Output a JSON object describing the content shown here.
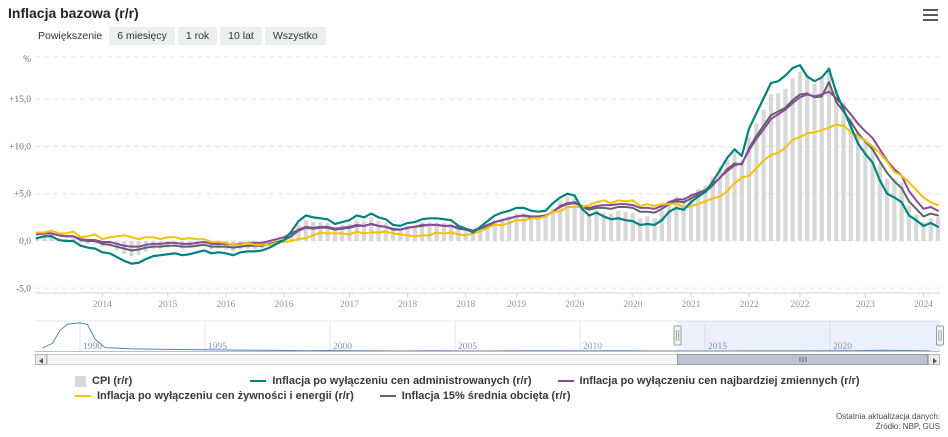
{
  "title": "Inflacja bazowa (r/r)",
  "range_selector": {
    "label": "Powiększenie",
    "buttons": [
      {
        "label": "6 miesięcy"
      },
      {
        "label": "1 rok"
      },
      {
        "label": "10 lat"
      },
      {
        "label": "Wszystko"
      }
    ]
  },
  "chart_data": {
    "type": "bar",
    "subtype": "combo: monthly CPI bars + 4 core-inflation lines (Highstock style)",
    "x_start": "2014-01",
    "x_end": "2024-05",
    "x_interval": "monthly",
    "y_axis": {
      "title": "%",
      "ticks": [
        {
          "v": -5,
          "label": "-5,0"
        },
        {
          "v": 0,
          "label": "0,0"
        },
        {
          "v": 5,
          "label": "+5,0"
        },
        {
          "v": 10,
          "label": "+10,0"
        },
        {
          "v": 15,
          "label": "+15,0"
        }
      ],
      "range": [
        -5.8,
        19.6
      ],
      "grid": "dashed"
    },
    "x_ticks": [
      {
        "label": "2014",
        "i": 9
      },
      {
        "label": "2015",
        "i": 18
      },
      {
        "label": "2016",
        "i": 26
      },
      {
        "label": "2016",
        "i": 34
      },
      {
        "label": "2017",
        "i": 43
      },
      {
        "label": "2018",
        "i": 51
      },
      {
        "label": "2018",
        "i": 59
      },
      {
        "label": "2019",
        "i": 66
      },
      {
        "label": "2020",
        "i": 74
      },
      {
        "label": "2020",
        "i": 82
      },
      {
        "label": "2021",
        "i": 90
      },
      {
        "label": "2022",
        "i": 98
      },
      {
        "label": "2022",
        "i": 105
      },
      {
        "label": "2023",
        "i": 114
      },
      {
        "label": "2024",
        "i": 122
      }
    ],
    "series": [
      {
        "name": "CPI (r/r)",
        "type": "bar",
        "color": "#d8d8d8",
        "values": [
          0.5,
          0.7,
          0.7,
          0.3,
          0.2,
          0.3,
          -0.2,
          -0.3,
          -0.3,
          -0.6,
          -0.6,
          -1.0,
          -1.4,
          -1.6,
          -1.5,
          -1.1,
          -0.9,
          -0.8,
          -0.7,
          -0.6,
          -0.8,
          -0.7,
          -0.6,
          -0.5,
          -0.9,
          -0.8,
          -0.9,
          -1.1,
          -0.9,
          -0.8,
          -0.9,
          -0.8,
          -0.5,
          -0.2,
          0.0,
          0.8,
          1.7,
          2.2,
          2.0,
          2.0,
          1.9,
          1.5,
          1.7,
          1.8,
          2.2,
          2.1,
          2.5,
          2.1,
          1.9,
          1.4,
          1.3,
          1.6,
          1.7,
          2.0,
          2.0,
          2.0,
          1.9,
          1.8,
          1.3,
          1.1,
          0.7,
          1.2,
          1.7,
          2.2,
          2.4,
          2.6,
          2.9,
          2.9,
          2.6,
          2.5,
          2.6,
          3.4,
          4.3,
          4.7,
          4.6,
          3.4,
          2.9,
          3.3,
          3.0,
          2.9,
          3.2,
          3.1,
          3.0,
          2.4,
          2.6,
          2.4,
          3.2,
          4.3,
          4.7,
          4.4,
          5.0,
          5.5,
          5.9,
          6.8,
          7.8,
          8.6,
          9.4,
          8.5,
          11.0,
          12.4,
          13.9,
          15.5,
          15.6,
          16.1,
          17.2,
          17.9,
          17.5,
          16.6,
          17.2,
          18.4,
          16.1,
          14.7,
          13.0,
          11.5,
          10.8,
          10.1,
          8.2,
          6.6,
          6.6,
          6.2,
          3.7,
          2.8,
          2.0,
          2.4,
          2.5
        ]
      },
      {
        "name": "Inflacja po wyłączeniu cen administrowanych (r/r)",
        "type": "line",
        "color": "#00837e",
        "values": [
          0.3,
          0.5,
          0.5,
          0.1,
          0.0,
          0.0,
          -0.5,
          -0.7,
          -0.8,
          -1.2,
          -1.3,
          -1.7,
          -2.1,
          -2.4,
          -2.3,
          -1.9,
          -1.6,
          -1.5,
          -1.4,
          -1.3,
          -1.5,
          -1.4,
          -1.2,
          -1.0,
          -1.3,
          -1.2,
          -1.3,
          -1.5,
          -1.2,
          -1.1,
          -1.1,
          -1.0,
          -0.7,
          -0.3,
          0.1,
          1.0,
          2.1,
          2.7,
          2.5,
          2.4,
          2.3,
          1.8,
          2.0,
          2.2,
          2.7,
          2.5,
          2.9,
          2.5,
          2.3,
          1.7,
          1.6,
          1.9,
          2.0,
          2.3,
          2.4,
          2.4,
          2.3,
          2.2,
          1.6,
          1.3,
          0.9,
          1.5,
          2.1,
          2.7,
          3.0,
          3.2,
          3.5,
          3.5,
          3.2,
          3.1,
          3.2,
          4.0,
          4.6,
          5.0,
          4.8,
          3.4,
          2.7,
          3.0,
          2.6,
          2.3,
          2.4,
          2.2,
          2.1,
          1.7,
          1.8,
          1.7,
          2.2,
          3.1,
          3.5,
          3.3,
          4.1,
          4.7,
          5.2,
          6.3,
          7.5,
          8.8,
          9.7,
          9.0,
          11.9,
          13.5,
          15.1,
          16.7,
          16.9,
          17.5,
          18.3,
          18.6,
          17.4,
          16.9,
          17.3,
          18.2,
          15.7,
          13.9,
          12.1,
          10.3,
          9.2,
          8.3,
          6.4,
          5.0,
          4.6,
          4.1,
          2.7,
          2.2,
          1.6,
          1.9,
          1.5
        ]
      },
      {
        "name": "Inflacja po wyłączeniu cen najbardziej zmiennych (r/r)",
        "type": "line",
        "color": "#8b4a98",
        "values": [
          0.7,
          0.8,
          0.8,
          0.6,
          0.5,
          0.5,
          0.2,
          0.1,
          0.1,
          -0.1,
          -0.1,
          -0.3,
          -0.5,
          -0.6,
          -0.6,
          -0.4,
          -0.3,
          -0.3,
          -0.2,
          -0.2,
          -0.3,
          -0.3,
          -0.2,
          -0.1,
          -0.3,
          -0.3,
          -0.3,
          -0.4,
          -0.3,
          -0.2,
          -0.2,
          -0.2,
          0.0,
          0.2,
          0.4,
          0.8,
          1.2,
          1.5,
          1.4,
          1.5,
          1.5,
          1.3,
          1.4,
          1.5,
          1.7,
          1.6,
          1.8,
          1.6,
          1.5,
          1.3,
          1.2,
          1.4,
          1.5,
          1.6,
          1.7,
          1.7,
          1.6,
          1.6,
          1.4,
          1.3,
          1.1,
          1.4,
          1.7,
          2.0,
          2.2,
          2.4,
          2.6,
          2.7,
          2.6,
          2.6,
          2.7,
          3.1,
          3.6,
          3.9,
          4.0,
          3.7,
          3.5,
          3.7,
          3.8,
          3.8,
          3.9,
          3.9,
          3.8,
          3.5,
          3.5,
          3.4,
          3.7,
          4.1,
          4.4,
          4.4,
          4.8,
          5.1,
          5.4,
          6.0,
          6.7,
          7.4,
          8.0,
          8.2,
          9.6,
          10.8,
          11.8,
          12.9,
          13.4,
          13.9,
          14.6,
          15.2,
          15.5,
          15.3,
          15.5,
          15.8,
          15.1,
          14.3,
          13.4,
          12.4,
          11.6,
          10.9,
          9.7,
          8.5,
          7.6,
          6.9,
          5.3,
          4.3,
          3.4,
          3.6,
          3.2
        ]
      },
      {
        "name": "Inflacja po wyłączeniu cen żywności i energii (r/r)",
        "type": "line",
        "color": "#f2c204",
        "values": [
          0.9,
          0.9,
          1.1,
          0.8,
          0.8,
          1.0,
          0.4,
          0.5,
          0.7,
          0.2,
          0.4,
          0.5,
          0.6,
          0.4,
          0.2,
          0.4,
          0.4,
          0.2,
          0.4,
          0.4,
          0.2,
          0.3,
          0.2,
          0.2,
          -0.1,
          -0.1,
          -0.2,
          -0.4,
          -0.4,
          -0.2,
          -0.4,
          -0.4,
          -0.4,
          -0.2,
          -0.1,
          0.0,
          0.2,
          0.3,
          0.6,
          0.9,
          0.8,
          0.8,
          0.8,
          0.7,
          1.0,
          0.8,
          0.9,
          0.9,
          1.0,
          0.8,
          0.7,
          0.6,
          0.5,
          0.6,
          0.6,
          0.9,
          0.8,
          0.9,
          0.7,
          0.6,
          0.8,
          1.0,
          1.4,
          1.7,
          1.7,
          1.9,
          2.2,
          2.2,
          2.4,
          2.4,
          2.6,
          3.1,
          3.1,
          3.6,
          3.6,
          3.6,
          3.8,
          4.1,
          4.3,
          4.0,
          4.3,
          4.2,
          4.3,
          3.7,
          3.9,
          3.7,
          3.9,
          3.9,
          4.0,
          3.5,
          3.7,
          3.9,
          4.2,
          4.5,
          4.7,
          5.3,
          6.1,
          6.7,
          6.9,
          7.7,
          8.5,
          9.1,
          9.3,
          9.9,
          10.7,
          11.0,
          11.4,
          11.5,
          11.7,
          12.0,
          12.3,
          12.2,
          11.5,
          11.1,
          10.6,
          10.0,
          9.3,
          8.4,
          7.3,
          6.9,
          6.2,
          5.4,
          4.6,
          4.1,
          3.8
        ]
      },
      {
        "name": "Inflacja 15% średnia obcięta (r/r)",
        "type": "line",
        "color": "#5e636a",
        "values": [
          0.7,
          0.8,
          0.8,
          0.6,
          0.5,
          0.5,
          0.1,
          0.0,
          0.0,
          -0.3,
          -0.4,
          -0.6,
          -0.8,
          -1.0,
          -0.9,
          -0.7,
          -0.6,
          -0.6,
          -0.5,
          -0.5,
          -0.6,
          -0.6,
          -0.5,
          -0.4,
          -0.6,
          -0.6,
          -0.6,
          -0.7,
          -0.6,
          -0.5,
          -0.5,
          -0.5,
          -0.3,
          -0.1,
          0.1,
          0.5,
          1.1,
          1.4,
          1.3,
          1.4,
          1.4,
          1.2,
          1.3,
          1.4,
          1.6,
          1.6,
          1.8,
          1.6,
          1.5,
          1.2,
          1.2,
          1.4,
          1.5,
          1.7,
          1.7,
          1.7,
          1.6,
          1.6,
          1.3,
          1.2,
          1.0,
          1.3,
          1.6,
          2.0,
          2.2,
          2.4,
          2.6,
          2.7,
          2.5,
          2.5,
          2.6,
          3.1,
          3.7,
          4.0,
          4.1,
          3.6,
          3.3,
          3.5,
          3.5,
          3.4,
          3.6,
          3.6,
          3.5,
          3.1,
          3.1,
          3.0,
          3.4,
          3.9,
          4.2,
          4.1,
          4.5,
          4.9,
          5.2,
          5.9,
          6.7,
          7.6,
          8.2,
          8.1,
          9.8,
          11.1,
          12.2,
          13.3,
          13.7,
          14.1,
          14.9,
          15.5,
          15.6,
          15.2,
          15.3,
          16.8,
          14.7,
          13.7,
          12.6,
          11.4,
          10.5,
          9.7,
          8.4,
          7.2,
          6.3,
          5.6,
          4.2,
          3.4,
          2.6,
          2.9,
          2.7
        ]
      }
    ]
  },
  "navigator": {
    "x_range": [
      1988.2,
      2024.4
    ],
    "year_labels": [
      1990,
      1995,
      2000,
      2005,
      2010,
      2015,
      2020
    ],
    "selection": {
      "from": 2013.9,
      "to": 2024.4
    },
    "line_color": "#5b83bd",
    "mask_color": "rgba(102,133,194,0.12)",
    "series_points": [
      [
        1988.5,
        60
      ],
      [
        1988.9,
        160
      ],
      [
        1989.2,
        430
      ],
      [
        1989.5,
        560
      ],
      [
        1990.0,
        585
      ],
      [
        1990.3,
        555
      ],
      [
        1990.6,
        250
      ],
      [
        1991,
        70
      ],
      [
        1991.5,
        60
      ],
      [
        1992,
        45
      ],
      [
        1993,
        35
      ],
      [
        1994,
        32
      ],
      [
        1995,
        28
      ],
      [
        1996,
        20
      ],
      [
        1997,
        15
      ],
      [
        1998,
        12
      ],
      [
        1999,
        7
      ],
      [
        2000,
        10
      ],
      [
        2001,
        5.5
      ],
      [
        2002,
        1.9
      ],
      [
        2003,
        0.8
      ],
      [
        2004,
        3.5
      ],
      [
        2005,
        2.1
      ],
      [
        2006,
        1.0
      ],
      [
        2007,
        2.5
      ],
      [
        2008,
        4.2
      ],
      [
        2009,
        3.5
      ],
      [
        2010,
        2.6
      ],
      [
        2011,
        4.3
      ],
      [
        2012,
        3.7
      ],
      [
        2013,
        0.9
      ],
      [
        2014,
        0
      ],
      [
        2015,
        -0.9
      ],
      [
        2016,
        -0.6
      ],
      [
        2017,
        2.0
      ],
      [
        2018,
        1.6
      ],
      [
        2019,
        2.3
      ],
      [
        2020,
        3.4
      ],
      [
        2021,
        5.1
      ],
      [
        2022,
        14.4
      ],
      [
        2023,
        11.4
      ],
      [
        2024,
        2.5
      ]
    ]
  },
  "legend": {
    "items": [
      {
        "label": "CPI (r/r)",
        "marker": "square",
        "color": "#d8d8d8"
      },
      {
        "label": "Inflacja po wyłączeniu cen administrowanych (r/r)",
        "marker": "line",
        "color": "#00837e"
      },
      {
        "label": "Inflacja po wyłączeniu cen najbardziej zmiennych (r/r)",
        "marker": "line",
        "color": "#8b4a98"
      },
      {
        "label": "Inflacja po wyłączeniu cen żywności i energii (r/r)",
        "marker": "line",
        "color": "#f2c204"
      },
      {
        "label": "Inflacja 15% średnia obcięta (r/r)",
        "marker": "line",
        "color": "#5e636a"
      }
    ]
  },
  "footer": {
    "line1": "Ostatnia aktualizacja danych:",
    "line2": "Źródło: NBP, GUS"
  }
}
